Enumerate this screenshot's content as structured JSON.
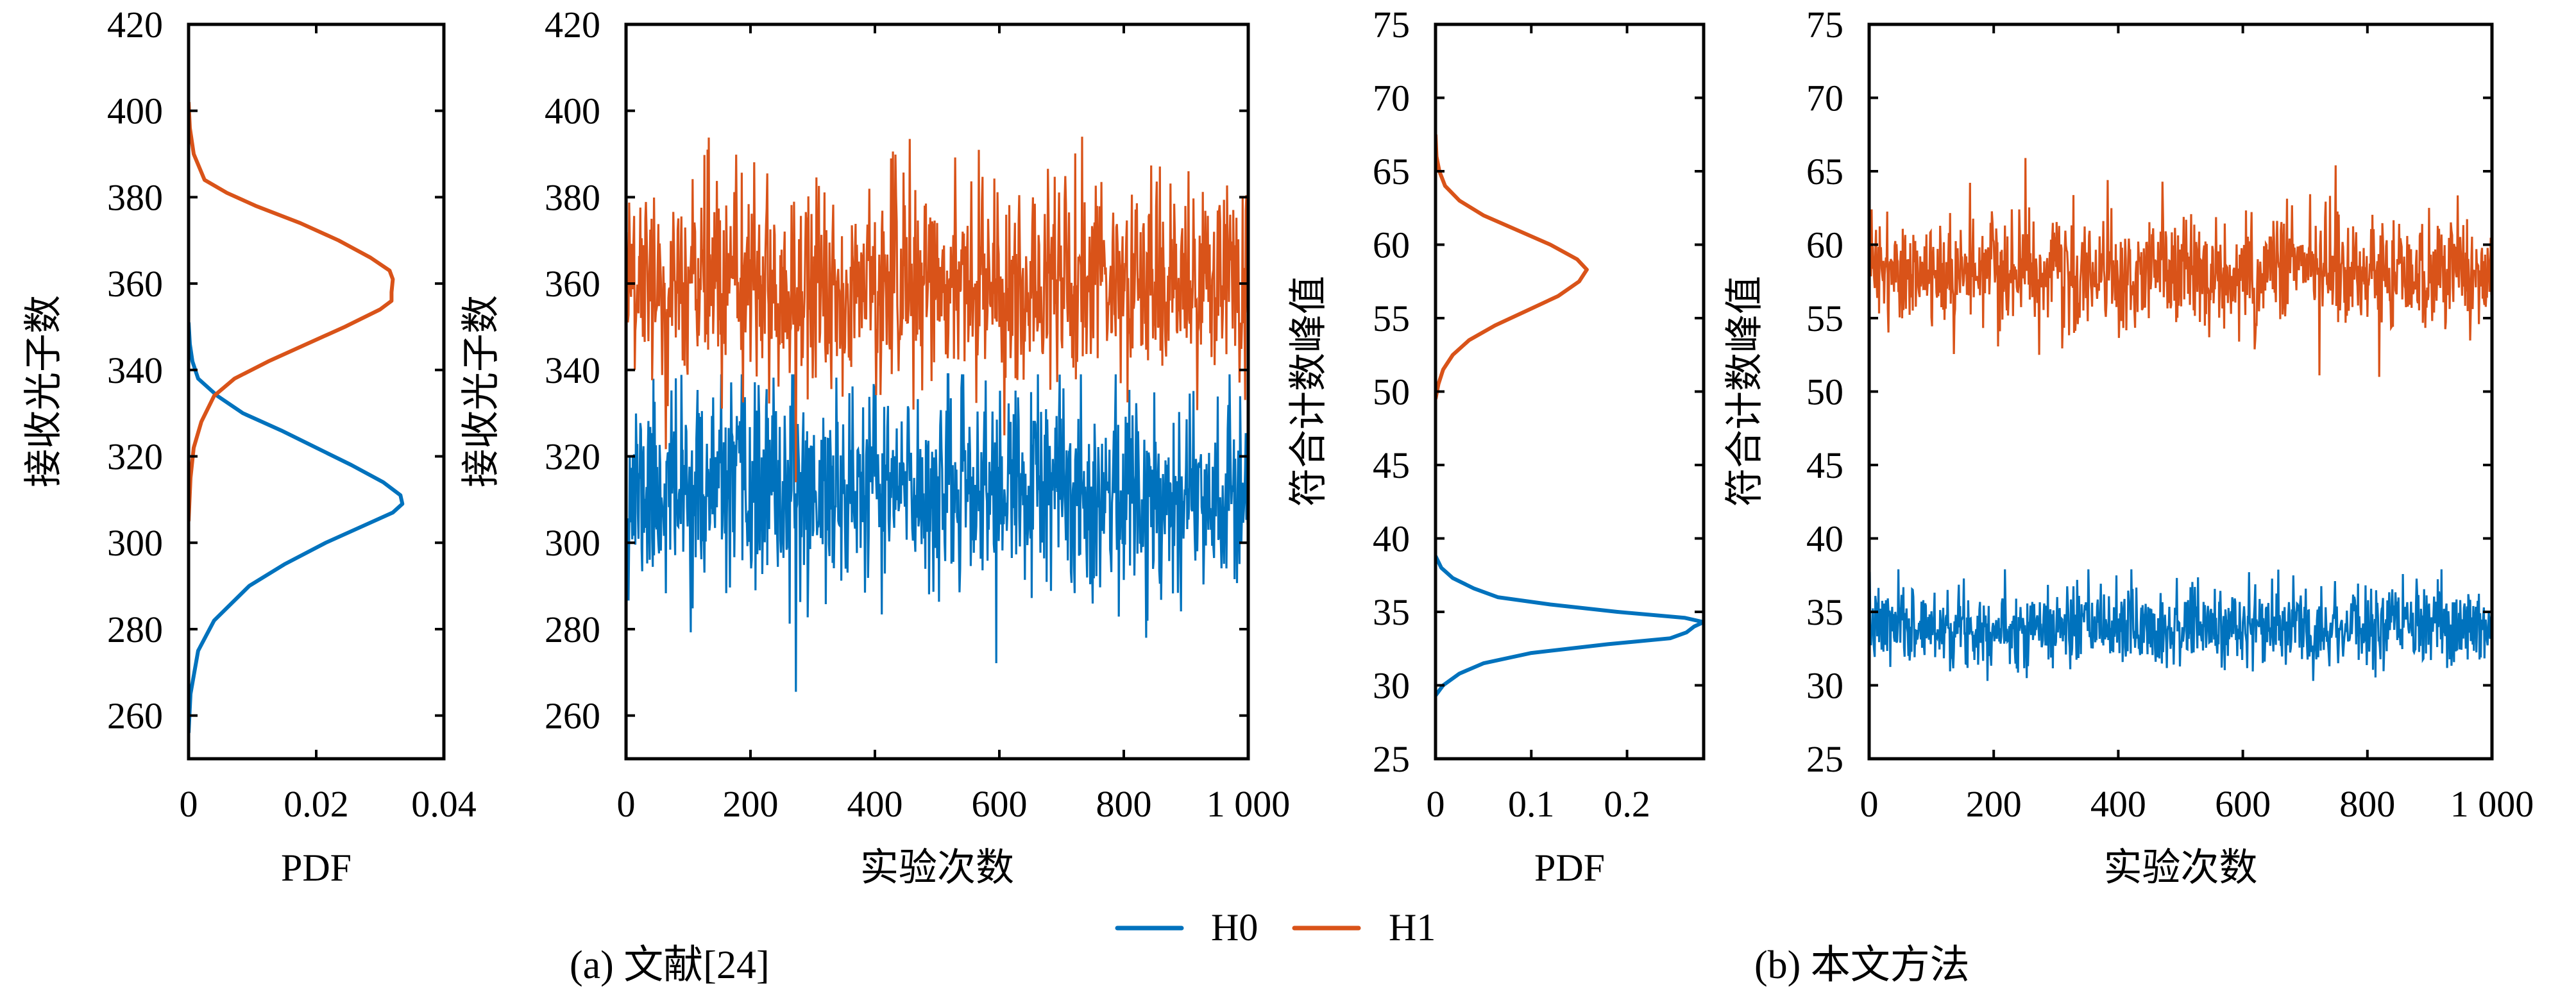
{
  "colors": {
    "H0": "#0072BD",
    "H1": "#D95319",
    "axis": "#000000",
    "background": "#ffffff"
  },
  "legend": {
    "position": "bottom-center",
    "items": [
      {
        "label": "H0",
        "color": "#0072BD"
      },
      {
        "label": "H1",
        "color": "#D95319"
      }
    ]
  },
  "captions": {
    "a": "(a) 文献[24]",
    "b": "(b) 本文方法"
  },
  "chart_data": [
    {
      "id": "a-pdf",
      "type": "line",
      "orientation": "vertical-pdf",
      "title": "",
      "xlabel": "PDF",
      "ylabel": "接收光子数",
      "xlim": [
        0,
        0.04
      ],
      "ylim": [
        250,
        420
      ],
      "xticks": [
        0,
        0.02,
        0.04
      ],
      "xtick_labels": [
        "0",
        "0.02",
        "0.04"
      ],
      "yticks": [
        260,
        280,
        300,
        320,
        340,
        360,
        380,
        400,
        420
      ],
      "ytick_labels": [
        "260",
        "280",
        "300",
        "320",
        "340",
        "360",
        "380",
        "400",
        "420"
      ],
      "grid": false,
      "series": [
        {
          "name": "H0",
          "y": [
            256,
            265,
            275,
            282,
            290,
            295,
            300,
            304,
            307,
            309,
            311,
            314,
            318,
            322,
            326,
            330,
            334,
            338,
            342,
            346,
            351
          ],
          "pdf": [
            0,
            0.0003,
            0.0015,
            0.004,
            0.0095,
            0.015,
            0.0215,
            0.0275,
            0.032,
            0.0335,
            0.0332,
            0.0305,
            0.0255,
            0.02,
            0.0145,
            0.0085,
            0.0045,
            0.0015,
            0.0006,
            0.0002,
            0
          ]
        },
        {
          "name": "H1",
          "y": [
            305,
            315,
            322,
            328,
            334,
            338,
            342,
            346,
            350,
            354,
            356,
            358,
            361,
            363,
            366,
            370,
            374,
            378,
            381,
            384,
            390,
            396,
            402
          ],
          "pdf": [
            0,
            0.0003,
            0.0008,
            0.002,
            0.004,
            0.0072,
            0.0125,
            0.0185,
            0.0245,
            0.03,
            0.0318,
            0.0318,
            0.032,
            0.0315,
            0.0285,
            0.0235,
            0.0175,
            0.0105,
            0.006,
            0.0025,
            0.0008,
            0.0002,
            0
          ]
        }
      ]
    },
    {
      "id": "a-trials",
      "type": "line",
      "title": "",
      "xlabel": "实验次数",
      "ylabel": "接收光子数",
      "xlim": [
        0,
        1000
      ],
      "ylim": [
        250,
        420
      ],
      "xticks": [
        0,
        200,
        400,
        600,
        800,
        1000
      ],
      "xtick_labels": [
        "0",
        "200",
        "400",
        "600",
        "800",
        "1 000"
      ],
      "yticks": [
        260,
        280,
        300,
        320,
        340,
        360,
        380,
        400,
        420
      ],
      "ytick_labels": [
        "260",
        "280",
        "300",
        "320",
        "340",
        "360",
        "380",
        "400",
        "420"
      ],
      "grid": false,
      "n_points": 1000,
      "series": [
        {
          "name": "H0",
          "mean": 312,
          "std": 11.5,
          "min": 265.5,
          "max": 339,
          "seed": 11,
          "spikes": [
            {
              "x": 272,
              "y": 265.5
            },
            {
              "x": 835,
              "y": 278
            }
          ]
        },
        {
          "name": "H1",
          "mean": 360,
          "std": 11.5,
          "min": 314,
          "max": 394,
          "seed": 29,
          "spikes": [
            {
              "x": 272,
              "y": 314
            },
            {
              "x": 732,
              "y": 394
            },
            {
              "x": 130,
              "y": 391
            }
          ]
        }
      ]
    },
    {
      "id": "b-pdf",
      "type": "line",
      "orientation": "vertical-pdf",
      "title": "",
      "xlabel": "PDF",
      "ylabel": "符合计数峰值",
      "xlim": [
        0,
        0.28
      ],
      "ylim": [
        25,
        75
      ],
      "xticks": [
        0,
        0.1,
        0.2
      ],
      "xtick_labels": [
        "0",
        "0.1",
        "0.2"
      ],
      "yticks": [
        25,
        30,
        35,
        40,
        45,
        50,
        55,
        60,
        65,
        70,
        75
      ],
      "ytick_labels": [
        "25",
        "30",
        "35",
        "40",
        "45",
        "50",
        "55",
        "60",
        "65",
        "70",
        "75"
      ],
      "grid": false,
      "series": [
        {
          "name": "H0",
          "y": [
            29.3,
            30,
            30.8,
            31.5,
            32.2,
            32.8,
            33.2,
            33.6,
            34,
            34.3,
            34.6,
            35,
            35.5,
            36,
            36.6,
            37.3,
            38,
            38.8
          ],
          "pdf": [
            0,
            0.008,
            0.025,
            0.05,
            0.1,
            0.18,
            0.245,
            0.262,
            0.27,
            0.28,
            0.26,
            0.19,
            0.12,
            0.065,
            0.04,
            0.018,
            0.006,
            0
          ]
        },
        {
          "name": "H1",
          "y": [
            49.5,
            50.5,
            51.5,
            52.5,
            53.5,
            54.5,
            55.5,
            56.5,
            57.5,
            58.3,
            59,
            60,
            61,
            62,
            63,
            64,
            65,
            66,
            67.5
          ],
          "pdf": [
            0,
            0.003,
            0.008,
            0.018,
            0.035,
            0.062,
            0.095,
            0.128,
            0.15,
            0.158,
            0.148,
            0.12,
            0.085,
            0.05,
            0.025,
            0.01,
            0.004,
            0.001,
            0
          ]
        }
      ]
    },
    {
      "id": "b-trials",
      "type": "line",
      "title": "",
      "xlabel": "实验次数",
      "ylabel": "符合计数峰值",
      "xlim": [
        0,
        1000
      ],
      "ylim": [
        25,
        75
      ],
      "xticks": [
        0,
        200,
        400,
        600,
        800,
        1000
      ],
      "xtick_labels": [
        "0",
        "200",
        "400",
        "600",
        "800",
        "1 000"
      ],
      "yticks": [
        25,
        30,
        35,
        40,
        45,
        50,
        55,
        60,
        65,
        70,
        75
      ],
      "ytick_labels": [
        "25",
        "30",
        "35",
        "40",
        "45",
        "50",
        "55",
        "60",
        "65",
        "70",
        "75"
      ],
      "grid": false,
      "n_points": 1000,
      "series": [
        {
          "name": "H0",
          "mean": 34,
          "std": 1.35,
          "min": 30.3,
          "max": 37.9,
          "seed": 7,
          "spikes": [
            {
              "x": 420,
              "y": 37.9
            }
          ]
        },
        {
          "name": "H1",
          "mean": 58,
          "std": 1.9,
          "min": 51,
          "max": 65.9,
          "seed": 43,
          "spikes": [
            {
              "x": 250,
              "y": 65.9
            },
            {
              "x": 748,
              "y": 65.4
            },
            {
              "x": 722,
              "y": 51.1
            },
            {
              "x": 818,
              "y": 51.0
            }
          ]
        }
      ]
    }
  ]
}
